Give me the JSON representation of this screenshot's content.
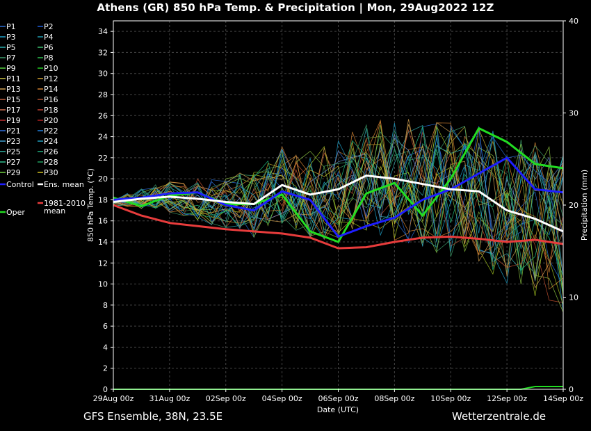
{
  "title": "Athens  (GR)  850 hPa Temp. & Precipitation | Mon, 29Aug2022 12Z",
  "footer": {
    "model": "GFS Ensemble, 38N, 23.5E",
    "source": "Wetterzentrale.de"
  },
  "colors": {
    "background": "#000000",
    "control": "#1e1eff",
    "mean": "#ffffff",
    "climate": "#e83c3c",
    "oper": "#22dd22"
  },
  "chart_data": {
    "type": "line",
    "xlabel": "Date (UTC)",
    "ylabel": "850 hPa Temp. (°C)",
    "y2label": "Precipitation (mm)",
    "ylim": [
      0,
      35
    ],
    "y2lim": [
      0,
      40
    ],
    "xlim": [
      "2022-08-29 00z",
      "2022-09-14 00z"
    ],
    "grid": true,
    "x_tick_labels": [
      "29Aug 00z",
      "31Aug 00z",
      "02Sep 00z",
      "04Sep 00z",
      "06Sep 00z",
      "08Sep 00z",
      "10Sep 00z",
      "12Sep 00z",
      "14Sep 00z"
    ],
    "y_ticks": [
      0,
      2,
      4,
      6,
      8,
      10,
      12,
      14,
      16,
      18,
      20,
      22,
      24,
      26,
      28,
      30,
      32,
      34
    ],
    "y2_ticks": [
      0,
      10,
      20,
      30,
      40
    ],
    "x_days": [
      0,
      1,
      2,
      3,
      4,
      5,
      6,
      7,
      8,
      9,
      10,
      11,
      12,
      13,
      14,
      15,
      16
    ],
    "series": [
      {
        "name": "Control",
        "color": "#1e1eff",
        "width": 3,
        "values": [
          18.0,
          18.2,
          18.6,
          18.7,
          17.5,
          17.0,
          18.8,
          18.0,
          14.5,
          15.5,
          16.3,
          18.0,
          19.0,
          20.5,
          22.0,
          19.0,
          18.7
        ]
      },
      {
        "name": "Ens. mean",
        "color": "#ffffff",
        "width": 3,
        "values": [
          17.8,
          18.1,
          18.3,
          18.1,
          17.8,
          17.6,
          19.4,
          18.5,
          19.0,
          20.3,
          20.0,
          19.5,
          19.0,
          18.8,
          17.0,
          16.2,
          15.0
        ]
      },
      {
        "name": "1981-2010 mean",
        "color": "#e83c3c",
        "width": 3,
        "values": [
          17.5,
          16.5,
          15.8,
          15.5,
          15.2,
          15.0,
          14.8,
          14.4,
          13.4,
          13.5,
          14.0,
          14.4,
          14.5,
          14.3,
          14.0,
          14.2,
          13.8
        ]
      },
      {
        "name": "Oper",
        "color": "#22dd22",
        "width": 3,
        "values": [
          18.2,
          17.4,
          18.4,
          18.7,
          17.6,
          17.6,
          18.5,
          15.0,
          14.0,
          18.6,
          19.6,
          16.5,
          20.0,
          24.8,
          23.5,
          21.4,
          21.0
        ]
      }
    ],
    "legend": [
      "P1",
      "P2",
      "P3",
      "P4",
      "P5",
      "P6",
      "P7",
      "P8",
      "P9",
      "P10",
      "P11",
      "P12",
      "P13",
      "P14",
      "P15",
      "P16",
      "P17",
      "P18",
      "P19",
      "P20",
      "P21",
      "P22",
      "P23",
      "P24",
      "P25",
      "P26",
      "P27",
      "P28",
      "P29",
      "P30",
      "Control",
      "Ens. mean",
      "Oper",
      "1981-2010 mean"
    ],
    "legend_placement": "left"
  }
}
